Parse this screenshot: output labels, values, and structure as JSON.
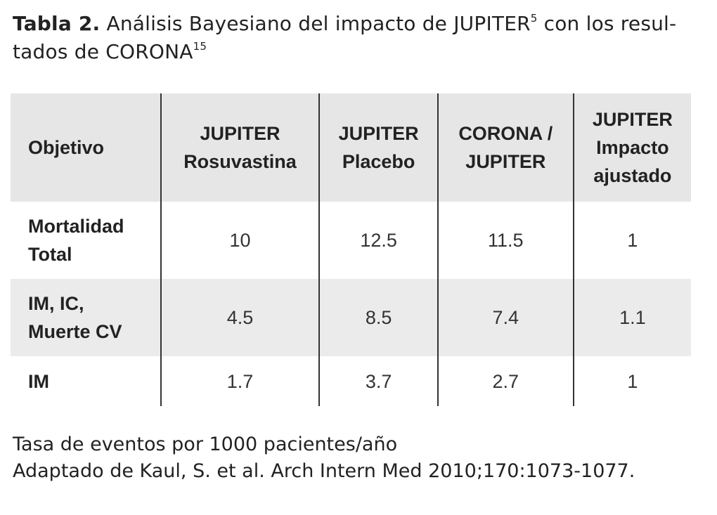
{
  "title": {
    "label": "Tabla 2.",
    "line1": "Análisis Bayesiano del impacto de JUPITER",
    "ref1": "5",
    "line1_end": "con los resul-",
    "line2": "tados de CORONA",
    "ref2": "15"
  },
  "table": {
    "headers": [
      [
        "Objetivo"
      ],
      [
        "JUPITER",
        "Rosuvastina"
      ],
      [
        "JUPITER",
        "Placebo"
      ],
      [
        "CORONA /",
        "JUPITER"
      ],
      [
        "JUPITER",
        "Impacto",
        "ajustado"
      ]
    ],
    "rows": [
      [
        [
          "Mortalidad",
          "Total"
        ],
        10,
        12.5,
        11.5,
        1
      ],
      [
        [
          "IM, IC,",
          "Muerte CV"
        ],
        4.5,
        8.5,
        7.4,
        1.1
      ],
      [
        [
          "IM"
        ],
        1.7,
        3.7,
        2.7,
        1
      ]
    ]
  },
  "notes": [
    "Tasa de eventos por 1000 pacientes/año",
    "Adaptado de Kaul, S. et al. Arch Intern Med 2010;170:1073-1077."
  ]
}
